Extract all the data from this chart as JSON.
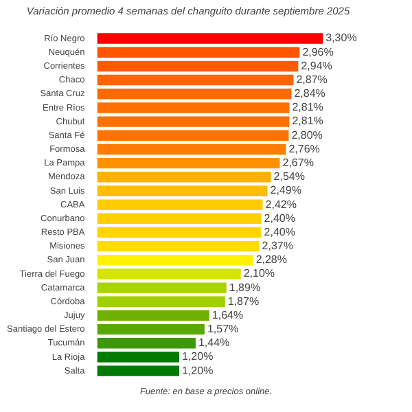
{
  "chart_data": {
    "type": "bar",
    "orientation": "horizontal",
    "title": "Variación promedio 4 semanas del changuito durante septiembre 2025",
    "categories": [
      "Río Negro",
      "Neuquén",
      "Corrientes",
      "Chaco",
      "Santa Cruz",
      "Entre Ríos",
      "Chubut",
      "Santa Fé",
      "Formosa",
      "La Pampa",
      "Mendoza",
      "San Luis",
      "CABA",
      "Conurbano",
      "Resto PBA",
      "Misiones",
      "San Juan",
      "Tierra del Fuego",
      "Catamarca",
      "Córdoba",
      "Jujuy",
      "Santiago del Estero",
      "Tucumán",
      "La Rioja",
      "Salta"
    ],
    "values": [
      3.3,
      2.96,
      2.94,
      2.87,
      2.84,
      2.81,
      2.81,
      2.8,
      2.76,
      2.67,
      2.54,
      2.49,
      2.42,
      2.4,
      2.4,
      2.37,
      2.28,
      2.1,
      1.89,
      1.87,
      1.64,
      1.57,
      1.44,
      1.2,
      1.2
    ],
    "value_labels": [
      "3,30%",
      "2,96%",
      "2,94%",
      "2,87%",
      "2,84%",
      "2,81%",
      "2,81%",
      "2,80%",
      "2,76%",
      "2,67%",
      "2,54%",
      "2,49%",
      "2,42%",
      "2,40%",
      "2,40%",
      "2,37%",
      "2,28%",
      "2,10%",
      "1,89%",
      "1,87%",
      "1,64%",
      "1,57%",
      "1,44%",
      "1,20%",
      "1,20%"
    ],
    "colors": [
      "#ff0000",
      "#ff5500",
      "#ff5a00",
      "#ff6400",
      "#ff6a00",
      "#ff7000",
      "#ff7000",
      "#ff7400",
      "#ff7c00",
      "#ff9000",
      "#ffb000",
      "#ffbd00",
      "#ffcc00",
      "#ffd000",
      "#ffd500",
      "#ffdd00",
      "#fff200",
      "#d4e600",
      "#a8d400",
      "#a0d000",
      "#6fb000",
      "#5aa800",
      "#3c9a00",
      "#007a00",
      "#007a00"
    ],
    "legend": false,
    "annotations": [
      "Fuente: en base a precios online."
    ]
  }
}
